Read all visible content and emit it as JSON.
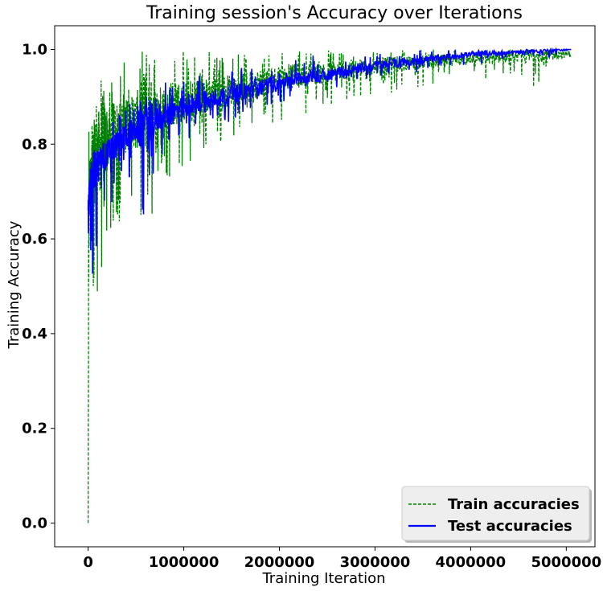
{
  "chart_data": {
    "type": "line",
    "title": "Training session's Accuracy over Iterations",
    "xlabel": "Training Iteration",
    "ylabel": "Training Accuracy",
    "xlim": [
      -350000,
      5300000
    ],
    "ylim": [
      -0.05,
      1.05
    ],
    "x_ticks": [
      0,
      1000000,
      2000000,
      3000000,
      4000000,
      5000000
    ],
    "x_tick_labels": [
      "0",
      "1000000",
      "2000000",
      "3000000",
      "4000000",
      "5000000"
    ],
    "y_ticks": [
      0.0,
      0.2,
      0.4,
      0.6,
      0.8,
      1.0
    ],
    "y_tick_labels": [
      "0.0",
      "0.2",
      "0.4",
      "0.6",
      "0.8",
      "1.0"
    ],
    "legend": {
      "placement": "lower-right",
      "entries": [
        {
          "label": "Train accuracies",
          "color": "#008000",
          "style": "dashed"
        },
        {
          "label": "Test accuracies",
          "color": "#0000ff",
          "style": "solid"
        }
      ]
    },
    "series": [
      {
        "name": "Train accuracies",
        "color": "#008000",
        "style": "dashed",
        "x": [
          0,
          5000,
          15000,
          30000,
          60000,
          100000,
          150000,
          200000,
          250000,
          300000,
          400000,
          500000,
          600000,
          700000,
          800000,
          1000000,
          1200000,
          1400000,
          1600000,
          1800000,
          2000000,
          2200000,
          2400000,
          2600000,
          2800000,
          3000000,
          3200000,
          3400000,
          3600000,
          3800000,
          4000000,
          4200000,
          4400000,
          4600000,
          4800000,
          5050000
        ],
        "y": [
          0.0,
          0.55,
          0.7,
          0.72,
          0.76,
          0.78,
          0.8,
          0.81,
          0.82,
          0.83,
          0.84,
          0.85,
          0.86,
          0.87,
          0.88,
          0.89,
          0.9,
          0.91,
          0.92,
          0.93,
          0.94,
          0.945,
          0.95,
          0.955,
          0.96,
          0.965,
          0.97,
          0.972,
          0.975,
          0.977,
          0.98,
          0.982,
          0.984,
          0.986,
          0.988,
          0.99
        ],
        "lower_envelope": [
          0.0,
          0.45,
          0.55,
          0.5,
          0.4,
          0.45,
          0.35,
          0.55,
          0.6,
          0.62,
          0.65,
          0.68,
          0.45,
          0.7,
          0.72,
          0.75,
          0.78,
          0.8,
          0.82,
          0.83,
          0.85,
          0.86,
          0.87,
          0.88,
          0.89,
          0.9,
          0.91,
          0.92,
          0.92,
          0.93,
          0.94,
          0.93,
          0.94,
          0.9,
          0.95,
          0.96
        ],
        "upper_envelope": [
          0.0,
          0.85,
          0.88,
          0.9,
          0.92,
          0.93,
          0.95,
          0.95,
          0.96,
          0.97,
          0.98,
          1.0,
          1.0,
          1.0,
          1.0,
          1.0,
          1.0,
          1.0,
          1.0,
          1.0,
          1.0,
          1.0,
          1.0,
          1.0,
          1.0,
          1.0,
          1.0,
          1.0,
          1.0,
          1.0,
          1.0,
          1.0,
          1.0,
          1.0,
          1.0,
          1.0
        ]
      },
      {
        "name": "Test accuracies",
        "color": "#0000ff",
        "style": "solid",
        "x": [
          0,
          5000,
          15000,
          30000,
          60000,
          100000,
          150000,
          200000,
          250000,
          300000,
          400000,
          500000,
          600000,
          700000,
          800000,
          1000000,
          1200000,
          1400000,
          1600000,
          1800000,
          2000000,
          2200000,
          2400000,
          2600000,
          2800000,
          3000000,
          3200000,
          3400000,
          3600000,
          3800000,
          4000000,
          4200000,
          4400000,
          4600000,
          4800000,
          5050000
        ],
        "y": [
          0.66,
          0.68,
          0.71,
          0.73,
          0.74,
          0.75,
          0.77,
          0.78,
          0.79,
          0.8,
          0.82,
          0.83,
          0.84,
          0.85,
          0.86,
          0.875,
          0.89,
          0.9,
          0.91,
          0.92,
          0.93,
          0.94,
          0.945,
          0.95,
          0.96,
          0.965,
          0.97,
          0.975,
          0.98,
          0.985,
          0.99,
          0.992,
          0.994,
          0.996,
          0.998,
          1.0
        ],
        "lower_envelope": [
          0.44,
          0.5,
          0.58,
          0.55,
          0.5,
          0.6,
          0.62,
          0.68,
          0.66,
          0.7,
          0.72,
          0.74,
          0.53,
          0.76,
          0.78,
          0.8,
          0.82,
          0.84,
          0.86,
          0.87,
          0.88,
          0.9,
          0.91,
          0.92,
          0.93,
          0.94,
          0.95,
          0.95,
          0.96,
          0.96,
          0.97,
          0.97,
          0.98,
          0.97,
          0.98,
          0.99
        ],
        "upper_envelope": [
          0.68,
          0.7,
          0.73,
          0.76,
          0.78,
          0.8,
          0.82,
          0.84,
          0.85,
          0.86,
          0.88,
          0.9,
          0.91,
          0.92,
          0.93,
          0.94,
          0.95,
          0.96,
          0.97,
          0.97,
          0.98,
          0.98,
          0.99,
          0.99,
          0.99,
          1.0,
          1.0,
          1.0,
          1.0,
          1.0,
          1.0,
          1.0,
          1.0,
          1.0,
          1.0,
          1.0
        ]
      }
    ]
  }
}
